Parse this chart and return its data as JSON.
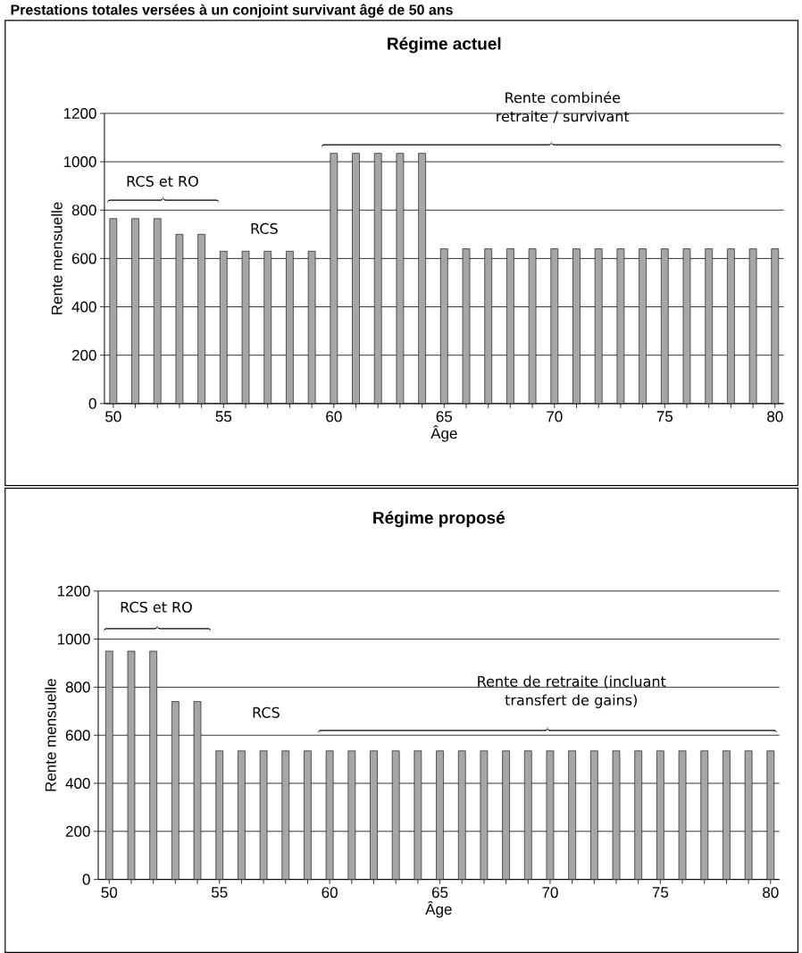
{
  "chart_data": [
    {
      "type": "bar",
      "title": "Régime actuel",
      "xlabel": "Âge",
      "ylabel": "Rente mensuelle",
      "x": [
        50,
        51,
        52,
        53,
        54,
        55,
        56,
        57,
        58,
        59,
        60,
        61,
        62,
        63,
        64,
        65,
        66,
        67,
        68,
        69,
        70,
        71,
        72,
        73,
        74,
        75,
        76,
        77,
        78,
        79,
        80
      ],
      "values": [
        765,
        765,
        765,
        700,
        700,
        630,
        630,
        630,
        630,
        630,
        1035,
        1035,
        1035,
        1035,
        1035,
        640,
        640,
        640,
        640,
        640,
        640,
        640,
        640,
        640,
        640,
        640,
        640,
        640,
        640,
        640,
        640
      ],
      "color": "#a6a6a6",
      "xlim": [
        49.6,
        80.4
      ],
      "ylim": [
        0,
        1200
      ],
      "xticks": [
        50,
        {
          "value": 51,
          "label": null
        },
        {
          "value": 52,
          "label": null
        },
        {
          "value": 53,
          "label": null
        },
        {
          "value": 54,
          "label": null
        },
        55,
        {
          "value": 56,
          "label": null
        },
        {
          "value": 57,
          "label": null
        },
        {
          "value": 58,
          "label": null
        },
        {
          "value": 59,
          "label": null
        },
        60,
        {
          "value": 61,
          "label": null
        },
        {
          "value": 62,
          "label": null
        },
        {
          "value": 63,
          "label": null
        },
        {
          "value": 64,
          "label": null
        },
        65,
        {
          "value": 66,
          "label": null
        },
        {
          "value": 67,
          "label": null
        },
        {
          "value": 68,
          "label": null
        },
        {
          "value": 69,
          "label": null
        },
        70,
        {
          "value": 71,
          "label": null
        },
        {
          "value": 72,
          "label": null
        },
        {
          "value": 73,
          "label": null
        },
        {
          "value": 74,
          "label": null
        },
        75,
        {
          "value": 76,
          "label": null
        },
        {
          "value": 77,
          "label": null
        },
        {
          "value": 78,
          "label": null
        },
        {
          "value": 79,
          "label": null
        },
        80
      ],
      "yticks": [
        0,
        200,
        400,
        600,
        800,
        1000,
        1200
      ],
      "grid": "y",
      "annotations": [
        "Prestations totales versées à un conjoint survivant âgé de 50 ans",
        "RCS et RO",
        "RCS",
        "Rente combinée retraite / survivant"
      ]
    },
    {
      "type": "bar",
      "title": "Régime proposé",
      "xlabel": "Âge",
      "ylabel": "Rente mensuelle",
      "x": [
        50,
        51,
        52,
        53,
        54,
        55,
        56,
        57,
        58,
        59,
        60,
        61,
        62,
        63,
        64,
        65,
        66,
        67,
        68,
        69,
        70,
        71,
        72,
        73,
        74,
        75,
        76,
        77,
        78,
        79,
        80
      ],
      "values": [
        950,
        950,
        950,
        740,
        740,
        535,
        535,
        535,
        535,
        535,
        535,
        535,
        535,
        535,
        535,
        535,
        535,
        535,
        535,
        535,
        535,
        535,
        535,
        535,
        535,
        535,
        535,
        535,
        535,
        535,
        535
      ],
      "color": "#a6a6a6",
      "xlim": [
        49.5,
        80.4
      ],
      "ylim": [
        0,
        1200
      ],
      "xticks": [
        50,
        {
          "value": 51,
          "label": null
        },
        {
          "value": 52,
          "label": null
        },
        {
          "value": 53,
          "label": null
        },
        {
          "value": 54,
          "label": null
        },
        55,
        {
          "value": 56,
          "label": null
        },
        {
          "value": 57,
          "label": null
        },
        {
          "value": 58,
          "label": null
        },
        {
          "value": 59,
          "label": null
        },
        60,
        {
          "value": 61,
          "label": null
        },
        {
          "value": 62,
          "label": null
        },
        {
          "value": 63,
          "label": null
        },
        {
          "value": 64,
          "label": null
        },
        65,
        {
          "value": 66,
          "label": null
        },
        {
          "value": 67,
          "label": null
        },
        {
          "value": 68,
          "label": null
        },
        {
          "value": 69,
          "label": null
        },
        70,
        {
          "value": 71,
          "label": null
        },
        {
          "value": 72,
          "label": null
        },
        {
          "value": 73,
          "label": null
        },
        {
          "value": 74,
          "label": null
        },
        75,
        {
          "value": 76,
          "label": null
        },
        {
          "value": 77,
          "label": null
        },
        {
          "value": 78,
          "label": null
        },
        {
          "value": 79,
          "label": null
        },
        80
      ],
      "yticks": [
        0,
        200,
        400,
        600,
        800,
        1000,
        1200
      ],
      "grid": "y",
      "annotations": [
        "RCS et RO",
        "RCS",
        "Rente de retraite (incluant transfert de gains)"
      ]
    }
  ]
}
